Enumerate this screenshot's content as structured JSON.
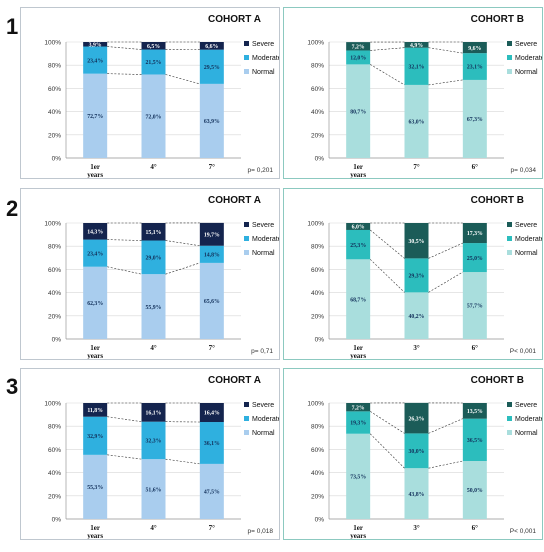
{
  "rows": [
    "1",
    "2",
    "3"
  ],
  "y_ticks": [
    "0%",
    "20%",
    "40%",
    "60%",
    "80%",
    "100%"
  ],
  "chart_data": [
    {
      "type": "bar",
      "stacked": true,
      "title": "COHORT A",
      "row": "1",
      "xlabel": "years",
      "categories": [
        "1er",
        "4°",
        "7°"
      ],
      "ylim": [
        0,
        100
      ],
      "series": [
        {
          "name": "Normal",
          "values": [
            72.7,
            72.0,
            63.9
          ]
        },
        {
          "name": "Moderate",
          "values": [
            23.4,
            21.5,
            29.5
          ]
        },
        {
          "name": "Severe",
          "values": [
            3.9,
            6.5,
            6.6
          ]
        }
      ],
      "labels": [
        [
          "72,7",
          "23,4",
          "3,9"
        ],
        [
          "72,0",
          "21,5",
          "6,5"
        ],
        [
          "63,9",
          "29,5",
          "6,6"
        ]
      ],
      "pvalue": "p= 0,201",
      "legend": "right"
    },
    {
      "type": "bar",
      "stacked": true,
      "title": "COHORT B",
      "row": "1",
      "xlabel": "years",
      "categories": [
        "1er",
        "7°",
        "6°"
      ],
      "ylim": [
        0,
        100
      ],
      "series": [
        {
          "name": "Normal",
          "values": [
            80.7,
            63.0,
            67.3
          ]
        },
        {
          "name": "Moderate",
          "values": [
            12.0,
            32.1,
            23.1
          ]
        },
        {
          "name": "Severe",
          "values": [
            7.2,
            4.9,
            9.6
          ]
        }
      ],
      "labels": [
        [
          "80,7",
          "12,0",
          "7,2"
        ],
        [
          "63,0",
          "32,1",
          "4,9"
        ],
        [
          "67,3",
          "23,1",
          "9,6"
        ]
      ],
      "pvalue": "p= 0,034",
      "legend": "right"
    },
    {
      "type": "bar",
      "stacked": true,
      "title": "COHORT A",
      "row": "2",
      "xlabel": "years",
      "categories": [
        "1er",
        "4°",
        "7°"
      ],
      "ylim": [
        0,
        100
      ],
      "series": [
        {
          "name": "Normal",
          "values": [
            62.3,
            55.9,
            65.6
          ]
        },
        {
          "name": "Moderate",
          "values": [
            23.4,
            29.0,
            14.8
          ]
        },
        {
          "name": "Severe",
          "values": [
            14.3,
            15.1,
            19.7
          ]
        }
      ],
      "labels": [
        [
          "62,3",
          "23,4",
          "14,3"
        ],
        [
          "55,9",
          "29,0",
          "15,1"
        ],
        [
          "65,6",
          "14,8",
          "19,7"
        ]
      ],
      "pvalue": "p= 0,71",
      "legend": "right"
    },
    {
      "type": "bar",
      "stacked": true,
      "title": "COHORT B",
      "row": "2",
      "xlabel": "years",
      "categories": [
        "1er",
        "3°",
        "6°"
      ],
      "ylim": [
        0,
        100
      ],
      "series": [
        {
          "name": "Normal",
          "values": [
            68.7,
            40.2,
            57.7
          ]
        },
        {
          "name": "Moderate",
          "values": [
            25.3,
            29.3,
            25.0
          ]
        },
        {
          "name": "Severe",
          "values": [
            6.0,
            30.5,
            17.3
          ]
        }
      ],
      "labels": [
        [
          "68,7",
          "25,3",
          "6,0"
        ],
        [
          "40,2",
          "29,3",
          "30,5"
        ],
        [
          "57,7",
          "25,0",
          "17,3"
        ]
      ],
      "pvalue": "P< 0,001",
      "legend": "right"
    },
    {
      "type": "bar",
      "stacked": true,
      "title": "COHORT A",
      "row": "3",
      "xlabel": "years",
      "categories": [
        "1er",
        "4°",
        "7°"
      ],
      "ylim": [
        0,
        100
      ],
      "series": [
        {
          "name": "Normal",
          "values": [
            55.3,
            51.6,
            47.5
          ]
        },
        {
          "name": "Moderate",
          "values": [
            32.9,
            32.3,
            36.1
          ]
        },
        {
          "name": "Severe",
          "values": [
            11.8,
            16.1,
            16.4
          ]
        }
      ],
      "labels": [
        [
          "55,3",
          "32,9",
          "11,8"
        ],
        [
          "51,6",
          "32,3",
          "16,1"
        ],
        [
          "47,5",
          "36,1",
          "16,4"
        ]
      ],
      "pvalue": "p= 0,018",
      "legend": "right"
    },
    {
      "type": "bar",
      "stacked": true,
      "title": "COHORT B",
      "row": "3",
      "xlabel": "years",
      "categories": [
        "1er",
        "3°",
        "6°"
      ],
      "ylim": [
        0,
        100
      ],
      "series": [
        {
          "name": "Normal",
          "values": [
            73.5,
            43.8,
            50.0
          ]
        },
        {
          "name": "Moderate",
          "values": [
            19.3,
            30.0,
            36.5
          ]
        },
        {
          "name": "Severe",
          "values": [
            7.2,
            26.3,
            13.5
          ]
        }
      ],
      "labels": [
        [
          "73,5",
          "19,3",
          "7,2"
        ],
        [
          "43,8",
          "30,0",
          "26,3"
        ],
        [
          "50,0",
          "36,5",
          "13,5"
        ]
      ],
      "pvalue": "P< 0,001",
      "legend": "right"
    }
  ],
  "colors": {
    "A": {
      "Normal": "#a9cdee",
      "Moderate": "#2fb0df",
      "Severe": "#14244e"
    },
    "B": {
      "Normal": "#a9dedd",
      "Moderate": "#2cbdbd",
      "Severe": "#1b5c58"
    }
  }
}
